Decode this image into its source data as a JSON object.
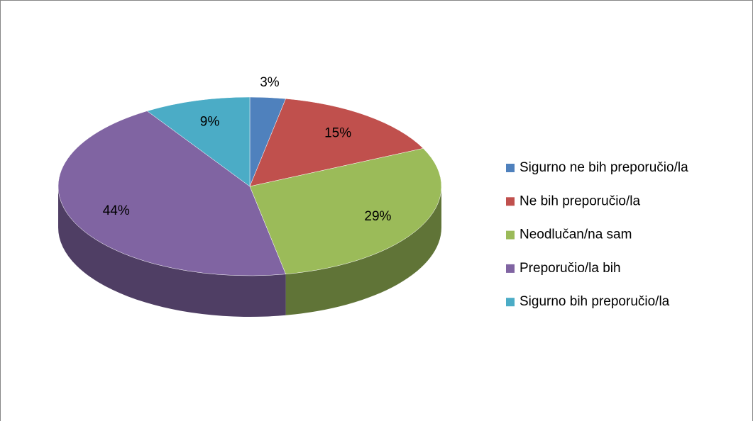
{
  "chart_data": {
    "type": "pie3d",
    "categories": [
      "Sigurno ne bih preporučio/la",
      "Ne bih preporučio/la",
      "Neodlučan/na sam",
      "Preporučio/la bih",
      "Sigurno bih preporučio/la"
    ],
    "values": [
      3,
      15,
      29,
      44,
      9
    ],
    "value_labels": [
      "3%",
      "15%",
      "29%",
      "44%",
      "9%"
    ],
    "colors": [
      "#4f81bd",
      "#c0504d",
      "#9bbb59",
      "#8064a2",
      "#4bacc6"
    ],
    "legend": "right"
  }
}
